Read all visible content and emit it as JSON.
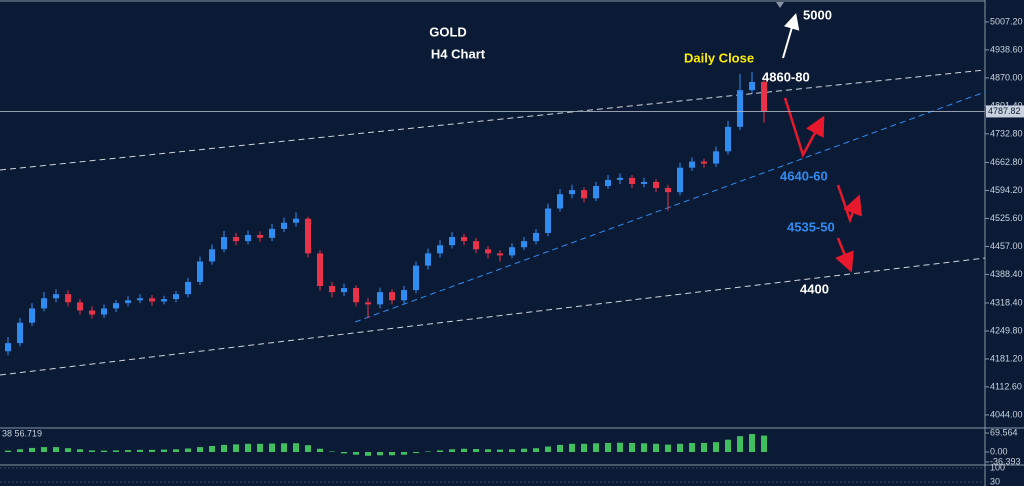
{
  "chart_data": {
    "type": "candlestick",
    "title": "GOLD",
    "subtitle": "H4 Chart",
    "annotations": [
      "5000",
      "Daily Close",
      "4860-80",
      "4640-60",
      "4535-50",
      "4400"
    ],
    "up_color": "#2f8cf0",
    "down_color": "#e8334a",
    "open": [
      4200,
      4220,
      4270,
      4305,
      4330,
      4340,
      4320,
      4300,
      4290,
      4305,
      4318,
      4325,
      4330,
      4322,
      4328,
      4340,
      4370,
      4420,
      4450,
      4480,
      4470,
      4485,
      4478,
      4500,
      4515,
      4525,
      4440,
      4360,
      4345,
      4355,
      4320,
      4315,
      4345,
      4325,
      4350,
      4410,
      4440,
      4460,
      4480,
      4470,
      4450,
      4440,
      4435,
      4455,
      4470,
      4490,
      4550,
      4585,
      4595,
      4575,
      4605,
      4620,
      4625,
      4610,
      4615,
      4600,
      4590,
      4650,
      4665,
      4660,
      4690,
      4750,
      4840,
      4860
    ],
    "high": [
      4235,
      4282,
      4318,
      4345,
      4352,
      4350,
      4328,
      4310,
      4315,
      4326,
      4335,
      4340,
      4338,
      4336,
      4348,
      4380,
      4432,
      4462,
      4495,
      4490,
      4496,
      4494,
      4512,
      4528,
      4540,
      4530,
      4448,
      4370,
      4366,
      4362,
      4330,
      4356,
      4352,
      4360,
      4420,
      4452,
      4472,
      4492,
      4488,
      4478,
      4458,
      4448,
      4465,
      4480,
      4500,
      4562,
      4598,
      4608,
      4602,
      4615,
      4632,
      4636,
      4632,
      4625,
      4622,
      4608,
      4662,
      4675,
      4672,
      4702,
      4765,
      4880,
      4885,
      4866
    ],
    "low": [
      4190,
      4212,
      4262,
      4298,
      4320,
      4310,
      4290,
      4280,
      4282,
      4296,
      4310,
      4318,
      4312,
      4315,
      4320,
      4332,
      4362,
      4412,
      4442,
      4460,
      4462,
      4468,
      4470,
      4492,
      4505,
      4430,
      4348,
      4332,
      4335,
      4310,
      4282,
      4305,
      4315,
      4316,
      4342,
      4400,
      4430,
      4452,
      4460,
      4440,
      4428,
      4420,
      4428,
      4448,
      4462,
      4482,
      4542,
      4575,
      4565,
      4568,
      4598,
      4610,
      4600,
      4602,
      4590,
      4545,
      4582,
      4642,
      4650,
      4652,
      4682,
      4742,
      4830,
      4760
    ],
    "close": [
      4220,
      4270,
      4305,
      4330,
      4340,
      4320,
      4300,
      4290,
      4305,
      4318,
      4325,
      4330,
      4322,
      4328,
      4340,
      4370,
      4420,
      4450,
      4480,
      4470,
      4485,
      4478,
      4500,
      4515,
      4525,
      4440,
      4360,
      4345,
      4355,
      4320,
      4315,
      4345,
      4325,
      4350,
      4410,
      4440,
      4460,
      4480,
      4470,
      4450,
      4440,
      4435,
      4455,
      4470,
      4490,
      4550,
      4585,
      4595,
      4575,
      4605,
      4620,
      4625,
      4610,
      4615,
      4600,
      4590,
      4650,
      4665,
      4660,
      4690,
      4750,
      4840,
      4860,
      4788
    ],
    "ylim": [
      4012,
      5056
    ],
    "yticks": [
      {
        "value": 5007.2,
        "label": "5007.20"
      },
      {
        "value": 4938.6,
        "label": "4938.60"
      },
      {
        "value": 4870.0,
        "label": "4870.00"
      },
      {
        "value": 4801.4,
        "label": "4801.40"
      },
      {
        "value": 4732.8,
        "label": "4732.80"
      },
      {
        "value": 4662.8,
        "label": "4662.80"
      },
      {
        "value": 4594.2,
        "label": "4594.20"
      },
      {
        "value": 4525.6,
        "label": "4525.60"
      },
      {
        "value": 4457.0,
        "label": "4457.00"
      },
      {
        "value": 4388.4,
        "label": "4388.40"
      },
      {
        "value": 4318.4,
        "label": "4318.40"
      },
      {
        "value": 4249.8,
        "label": "4249.80"
      },
      {
        "value": 4181.2,
        "label": "4181.20"
      },
      {
        "value": 4112.6,
        "label": "4112.60"
      },
      {
        "value": 4044.0,
        "label": "4044.00"
      }
    ],
    "last_price": {
      "value": 4787.82,
      "label": "4787.82"
    },
    "indicator": {
      "header": "38 56.719",
      "color": "#3fbf5f",
      "values": [
        5,
        10,
        15,
        18,
        18,
        14,
        10,
        6,
        5,
        6,
        7,
        8,
        8,
        9,
        10,
        13,
        18,
        22,
        26,
        28,
        30,
        30,
        31,
        32,
        32,
        25,
        12,
        2,
        -5,
        -10,
        -14,
        -12,
        -12,
        -10,
        -4,
        2,
        6,
        10,
        12,
        11,
        10,
        9,
        10,
        12,
        14,
        20,
        26,
        30,
        30,
        32,
        33,
        34,
        33,
        32,
        30,
        27,
        30,
        33,
        33,
        36,
        45,
        58,
        66,
        60
      ],
      "ylim": [
        -47.6,
        87.9
      ],
      "yticks": [
        {
          "value": 69.564,
          "label": "69.564"
        },
        {
          "value": 0,
          "label": "0.00"
        },
        {
          "value": -36.393,
          "label": "-36.393"
        }
      ]
    },
    "indicator2": {
      "yticks": [
        100,
        30
      ]
    }
  }
}
